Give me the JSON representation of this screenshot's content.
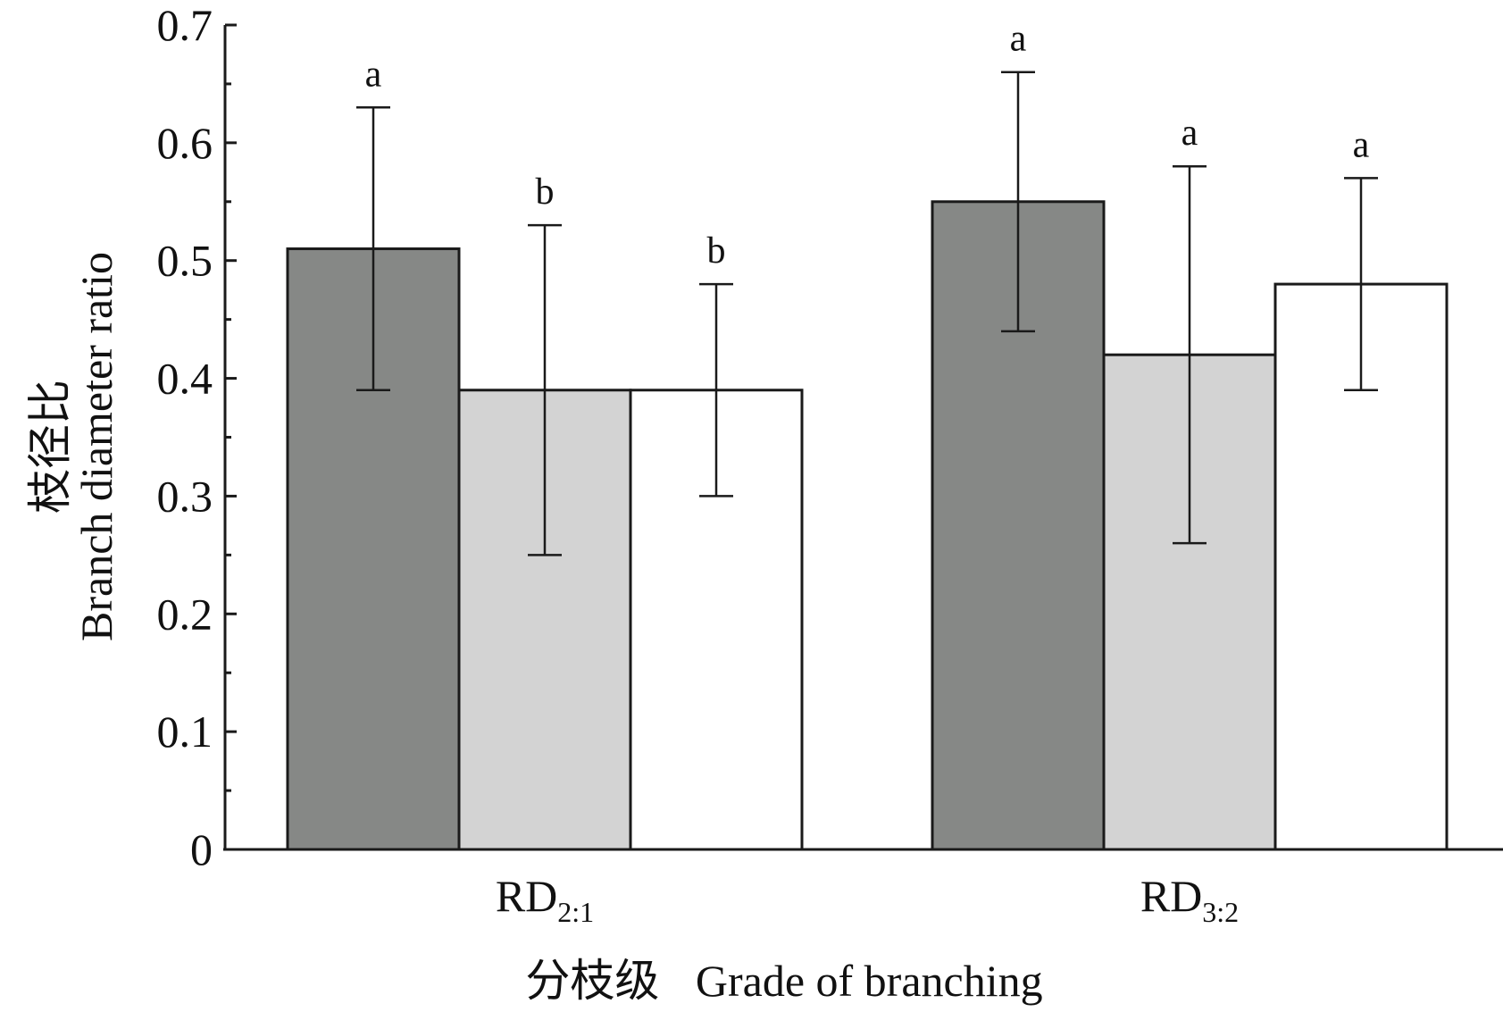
{
  "chart_data": {
    "type": "bar",
    "categories": [
      {
        "main": "RD",
        "sub": "2:1"
      },
      {
        "main": "RD",
        "sub": "3:2"
      }
    ],
    "series": [
      {
        "color": "#868886",
        "values": [
          0.51,
          0.55
        ],
        "errors": [
          0.12,
          0.11
        ],
        "labels": [
          "a",
          "a"
        ]
      },
      {
        "color": "#d3d3d3",
        "values": [
          0.39,
          0.42
        ],
        "errors": [
          0.14,
          0.16
        ],
        "labels": [
          "b",
          "a"
        ]
      },
      {
        "color": "#ffffff",
        "values": [
          0.39,
          0.48
        ],
        "errors": [
          0.09,
          0.09
        ],
        "labels": [
          "b",
          "a"
        ]
      }
    ],
    "ylim": [
      0,
      0.7
    ],
    "yticks": [
      "0",
      "0.1",
      "0.2",
      "0.3",
      "0.4",
      "0.5",
      "0.6",
      "0.7"
    ],
    "ylabel_cn": "枝径比",
    "ylabel_en": "Branch diameter ratio",
    "xlabel_cn": "分枝级",
    "xlabel_en": "Grade of branching",
    "legend": "none",
    "grid": false
  }
}
